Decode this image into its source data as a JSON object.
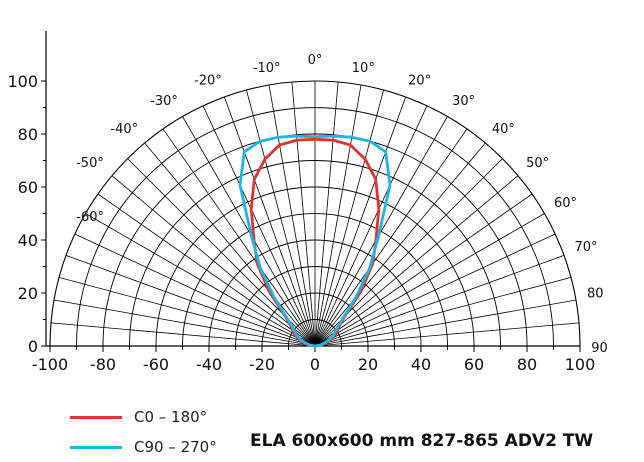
{
  "chart_data": {
    "type": "polar",
    "title": "ELA 600x600 mm 827-865 ADV2 TW",
    "radial_range": [
      0,
      110
    ],
    "y_ticks": [
      0,
      20,
      40,
      60,
      80,
      100
    ],
    "x_ticks": [
      -100,
      -80,
      -60,
      -40,
      -20,
      0,
      20,
      40,
      60,
      80,
      100
    ],
    "angle_labels": [
      "-60°",
      "-50°",
      "-40°",
      "-30°",
      "-20°",
      "-10°",
      "0°",
      "10°",
      "20°",
      "30°",
      "40°",
      "50°",
      "60°",
      "70°",
      "80",
      "90"
    ],
    "series": [
      {
        "name": "C0 – 180°",
        "color": "#e03232",
        "angles": [
          -90,
          -80,
          -70,
          -60,
          -50,
          -45,
          -40,
          -35,
          -30,
          -25,
          -20,
          -15,
          -10,
          -5,
          0,
          5,
          10,
          15,
          20,
          25,
          30,
          35,
          40,
          45,
          50,
          60,
          70,
          80,
          90
        ],
        "values": [
          0,
          3,
          6,
          9,
          12,
          16,
          27,
          38,
          46,
          57,
          67,
          73,
          77,
          78,
          78,
          78,
          77,
          73,
          67,
          57,
          46,
          38,
          27,
          16,
          12,
          9,
          6,
          3,
          0
        ]
      },
      {
        "name": "C90 – 270°",
        "color": "#1fb4e6",
        "angles": [
          -90,
          -80,
          -70,
          -60,
          -50,
          -45,
          -40,
          -35,
          -30,
          -25,
          -20,
          -15,
          -10,
          -5,
          0,
          5,
          10,
          15,
          20,
          25,
          30,
          35,
          40,
          45,
          50,
          60,
          70,
          80,
          90
        ],
        "values": [
          0,
          2,
          5,
          8,
          11,
          15,
          24,
          36,
          48,
          67,
          78,
          80,
          80,
          79.5,
          79,
          79.5,
          80,
          80,
          78,
          67,
          48,
          36,
          24,
          15,
          11,
          8,
          5,
          2,
          0
        ]
      }
    ]
  }
}
